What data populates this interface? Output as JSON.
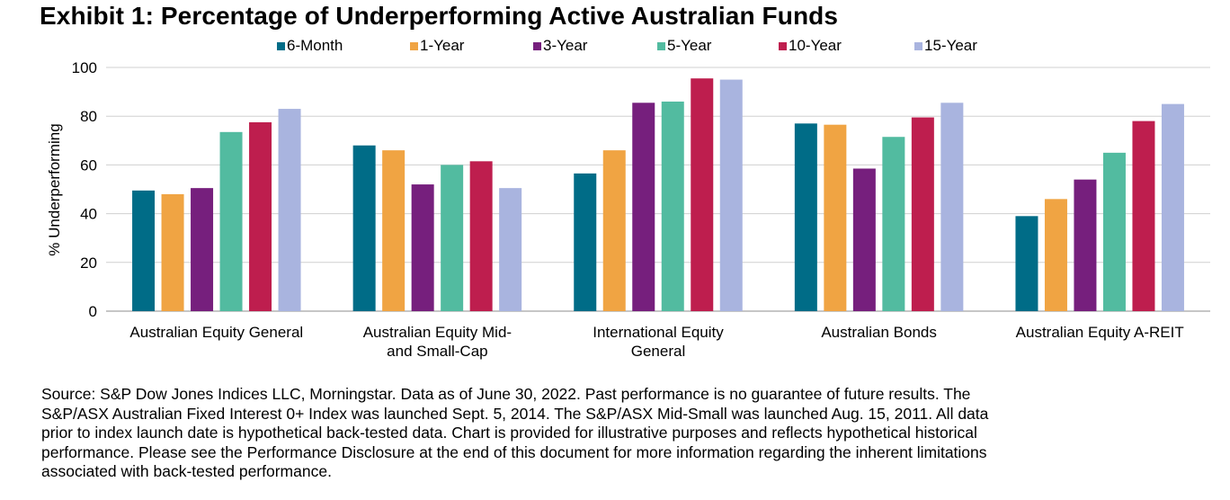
{
  "title": "Exhibit 1: Percentage of Underperforming Active Australian Funds",
  "chart_data": {
    "type": "bar",
    "title": "Exhibit 1: Percentage of Underperforming Active Australian Funds",
    "ylabel": "% Underperforming",
    "xlabel": "",
    "ylim": [
      0,
      100
    ],
    "yticks": [
      "0",
      "20",
      "40",
      "60",
      "80",
      "100"
    ],
    "grid": true,
    "legend_position": "top",
    "categories": [
      [
        "Australian Equity General"
      ],
      [
        "Australian Equity Mid-",
        "and Small-Cap"
      ],
      [
        "International Equity",
        "General"
      ],
      [
        "Australian Bonds"
      ],
      [
        "Australian Equity A-REIT"
      ]
    ],
    "series": [
      {
        "name": "6-Month",
        "color": "#006C87",
        "values": [
          49.5,
          68.0,
          56.5,
          77.0,
          39.0
        ]
      },
      {
        "name": "1-Year",
        "color": "#F0A443",
        "values": [
          48.0,
          66.0,
          66.0,
          76.5,
          46.0
        ]
      },
      {
        "name": "3-Year",
        "color": "#761F7D",
        "values": [
          50.5,
          52.0,
          85.5,
          58.5,
          54.0
        ]
      },
      {
        "name": "5-Year",
        "color": "#52BBA0",
        "values": [
          73.5,
          60.0,
          86.0,
          71.5,
          65.0
        ]
      },
      {
        "name": "10-Year",
        "color": "#BE1E4E",
        "values": [
          77.5,
          61.5,
          95.5,
          79.5,
          78.0
        ]
      },
      {
        "name": "15-Year",
        "color": "#A9B4DF",
        "values": [
          83.0,
          50.5,
          95.0,
          85.5,
          85.0
        ]
      }
    ]
  },
  "source_lines": [
    "Source: S&P Dow Jones Indices LLC, Morningstar.  Data as of June 30, 2022.  Past performance is no guarantee of future results.  The",
    "S&P/ASX Australian Fixed Interest 0+ Index was launched Sept. 5, 2014.  The S&P/ASX Mid-Small was launched Aug. 15, 2011.  All data",
    "prior to index launch date is hypothetical back-tested data.  Chart is provided for illustrative purposes and reflects hypothetical historical",
    "performance.  Please see the Performance Disclosure at the end of this document for more information regarding the inherent limitations",
    "associated with back-tested performance."
  ]
}
